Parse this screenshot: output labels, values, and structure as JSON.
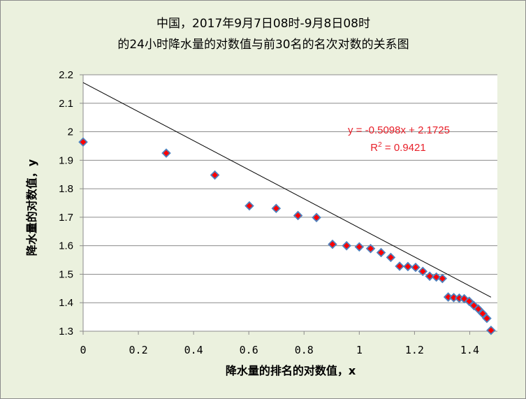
{
  "chart_data": {
    "type": "scatter",
    "title_line1": "中国，2017年9月7日08时-9月8日08时",
    "title_line2": "的24小时降水量的对数值与前30名的名次对数的关系图",
    "xlabel": "降水量的排名的对数值，x",
    "ylabel": "降水量的对数值，y",
    "xlim": [
      0,
      1.5
    ],
    "ylim": [
      1.3,
      2.2
    ],
    "x_ticks": [
      "0",
      "0.2",
      "0.4",
      "0.6",
      "0.8",
      "1",
      "1.2",
      "1.4"
    ],
    "y_ticks": [
      "1.3",
      "1.4",
      "1.5",
      "1.6",
      "1.7",
      "1.8",
      "1.9",
      "2",
      "2.1",
      "2.2"
    ],
    "grid": "horizontal",
    "trendline": {
      "slope": -0.5098,
      "intercept": 2.1725,
      "equation": "y = -0.5098x + 2.1725",
      "r2": "0.9421"
    },
    "marker_fill": "#ff0000",
    "marker_stroke": "#4f81bd",
    "background": "#ebf1de",
    "points": [
      {
        "x": 0.0,
        "y": 1.964
      },
      {
        "x": 0.301,
        "y": 1.925
      },
      {
        "x": 0.477,
        "y": 1.848
      },
      {
        "x": 0.602,
        "y": 1.74
      },
      {
        "x": 0.699,
        "y": 1.731
      },
      {
        "x": 0.778,
        "y": 1.706
      },
      {
        "x": 0.845,
        "y": 1.699
      },
      {
        "x": 0.903,
        "y": 1.605
      },
      {
        "x": 0.954,
        "y": 1.6
      },
      {
        "x": 1.0,
        "y": 1.596
      },
      {
        "x": 1.041,
        "y": 1.59
      },
      {
        "x": 1.079,
        "y": 1.576
      },
      {
        "x": 1.114,
        "y": 1.559
      },
      {
        "x": 1.146,
        "y": 1.528
      },
      {
        "x": 1.176,
        "y": 1.527
      },
      {
        "x": 1.204,
        "y": 1.524
      },
      {
        "x": 1.23,
        "y": 1.51
      },
      {
        "x": 1.255,
        "y": 1.493
      },
      {
        "x": 1.279,
        "y": 1.49
      },
      {
        "x": 1.301,
        "y": 1.485
      },
      {
        "x": 1.322,
        "y": 1.42
      },
      {
        "x": 1.342,
        "y": 1.418
      },
      {
        "x": 1.362,
        "y": 1.416
      },
      {
        "x": 1.38,
        "y": 1.414
      },
      {
        "x": 1.398,
        "y": 1.405
      },
      {
        "x": 1.415,
        "y": 1.39
      },
      {
        "x": 1.431,
        "y": 1.378
      },
      {
        "x": 1.447,
        "y": 1.362
      },
      {
        "x": 1.462,
        "y": 1.345
      },
      {
        "x": 1.477,
        "y": 1.303
      }
    ]
  }
}
